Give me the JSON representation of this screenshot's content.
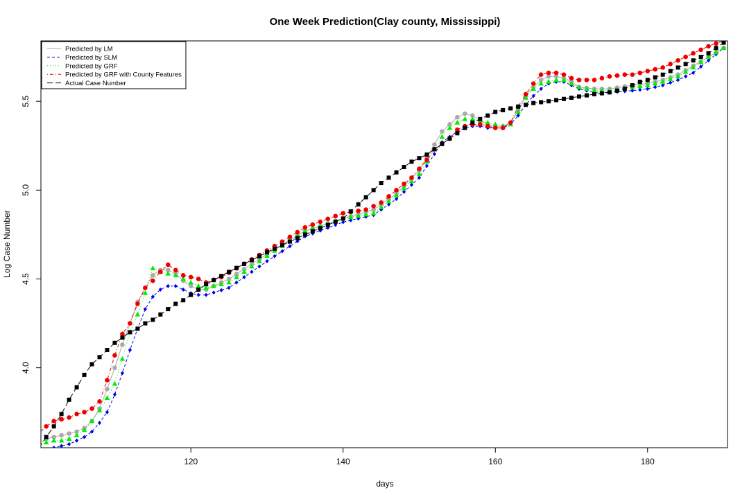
{
  "chart_data": {
    "type": "line",
    "title": "One Week Prediction(Clay county, Mississippi)",
    "xlabel": "days",
    "ylabel": "Log Case Number",
    "xlim": [
      100.3,
      190.5
    ],
    "ylim": [
      3.55,
      5.84
    ],
    "xticks": [
      120,
      140,
      160,
      180
    ],
    "yticks": [
      4.0,
      4.5,
      5.0,
      5.5
    ],
    "grid": false,
    "legend_position": "top-left",
    "x_start": 100,
    "x_end": 190,
    "series": [
      {
        "name": "Predicted by LM",
        "color": "#aaaaaa",
        "line_style": "solid",
        "marker": "circle",
        "knots": [
          [
            100,
            3.57
          ],
          [
            101,
            3.6
          ],
          [
            102,
            3.61
          ],
          [
            103,
            3.62
          ],
          [
            104,
            3.63
          ],
          [
            105,
            3.64
          ],
          [
            106,
            3.66
          ],
          [
            107,
            3.7
          ],
          [
            108,
            3.77
          ],
          [
            109,
            3.88
          ],
          [
            110,
            4.0
          ],
          [
            111,
            4.13
          ],
          [
            112,
            4.25
          ],
          [
            113,
            4.37
          ],
          [
            114,
            4.45
          ],
          [
            115,
            4.52
          ],
          [
            116,
            4.55
          ],
          [
            117,
            4.55
          ],
          [
            118,
            4.53
          ],
          [
            119,
            4.49
          ],
          [
            120,
            4.46
          ],
          [
            121,
            4.44
          ],
          [
            122,
            4.44
          ],
          [
            125,
            4.5
          ],
          [
            130,
            4.64
          ],
          [
            135,
            4.77
          ],
          [
            140,
            4.84
          ],
          [
            144,
            4.89
          ],
          [
            147,
            4.98
          ],
          [
            150,
            5.11
          ],
          [
            153,
            5.33
          ],
          [
            154,
            5.37
          ],
          [
            155,
            5.41
          ],
          [
            156,
            5.43
          ],
          [
            157,
            5.42
          ],
          [
            158,
            5.39
          ],
          [
            159,
            5.37
          ],
          [
            160,
            5.36
          ],
          [
            161,
            5.36
          ],
          [
            162,
            5.38
          ],
          [
            163,
            5.45
          ],
          [
            164,
            5.53
          ],
          [
            165,
            5.58
          ],
          [
            166,
            5.62
          ],
          [
            167,
            5.64
          ],
          [
            168,
            5.64
          ],
          [
            169,
            5.63
          ],
          [
            170,
            5.61
          ],
          [
            171,
            5.58
          ],
          [
            173,
            5.57
          ],
          [
            175,
            5.57
          ],
          [
            178,
            5.59
          ],
          [
            180,
            5.6
          ],
          [
            182,
            5.62
          ],
          [
            184,
            5.65
          ],
          [
            186,
            5.7
          ],
          [
            188,
            5.75
          ],
          [
            190,
            5.8
          ]
        ]
      },
      {
        "name": "Predicted by SLM",
        "color": "#0000ee",
        "line_style": "dashed",
        "marker": "diamond",
        "knots": [
          [
            100,
            3.53
          ],
          [
            101,
            3.54
          ],
          [
            102,
            3.55
          ],
          [
            103,
            3.56
          ],
          [
            104,
            3.57
          ],
          [
            105,
            3.59
          ],
          [
            106,
            3.61
          ],
          [
            107,
            3.64
          ],
          [
            108,
            3.69
          ],
          [
            109,
            3.75
          ],
          [
            110,
            3.85
          ],
          [
            111,
            3.97
          ],
          [
            112,
            4.1
          ],
          [
            113,
            4.22
          ],
          [
            114,
            4.33
          ],
          [
            115,
            4.4
          ],
          [
            116,
            4.44
          ],
          [
            117,
            4.46
          ],
          [
            118,
            4.46
          ],
          [
            119,
            4.44
          ],
          [
            120,
            4.42
          ],
          [
            121,
            4.41
          ],
          [
            122,
            4.41
          ],
          [
            125,
            4.45
          ],
          [
            130,
            4.6
          ],
          [
            135,
            4.74
          ],
          [
            140,
            4.82
          ],
          [
            144,
            4.86
          ],
          [
            147,
            4.95
          ],
          [
            150,
            5.07
          ],
          [
            153,
            5.27
          ],
          [
            154,
            5.3
          ],
          [
            155,
            5.33
          ],
          [
            156,
            5.35
          ],
          [
            157,
            5.36
          ],
          [
            158,
            5.36
          ],
          [
            159,
            5.35
          ],
          [
            160,
            5.35
          ],
          [
            161,
            5.35
          ],
          [
            162,
            5.37
          ],
          [
            163,
            5.42
          ],
          [
            164,
            5.48
          ],
          [
            165,
            5.53
          ],
          [
            166,
            5.57
          ],
          [
            167,
            5.6
          ],
          [
            168,
            5.61
          ],
          [
            169,
            5.61
          ],
          [
            170,
            5.59
          ],
          [
            171,
            5.57
          ],
          [
            173,
            5.55
          ],
          [
            175,
            5.55
          ],
          [
            178,
            5.56
          ],
          [
            180,
            5.57
          ],
          [
            182,
            5.59
          ],
          [
            184,
            5.62
          ],
          [
            186,
            5.66
          ],
          [
            188,
            5.73
          ],
          [
            190,
            5.8
          ]
        ]
      },
      {
        "name": "Predicted by GRF",
        "color": "#00ee00",
        "line_style": "dotted",
        "marker": "triangle",
        "knots": [
          [
            100,
            3.56
          ],
          [
            101,
            3.58
          ],
          [
            102,
            3.59
          ],
          [
            103,
            3.59
          ],
          [
            104,
            3.6
          ],
          [
            105,
            3.62
          ],
          [
            106,
            3.65
          ],
          [
            107,
            3.7
          ],
          [
            108,
            3.76
          ],
          [
            109,
            3.83
          ],
          [
            110,
            3.91
          ],
          [
            111,
            4.05
          ],
          [
            112,
            4.2
          ],
          [
            113,
            4.3
          ],
          [
            114,
            4.42
          ],
          [
            115,
            4.56
          ],
          [
            116,
            4.54
          ],
          [
            117,
            4.53
          ],
          [
            118,
            4.52
          ],
          [
            119,
            4.5
          ],
          [
            120,
            4.48
          ],
          [
            121,
            4.46
          ],
          [
            122,
            4.45
          ],
          [
            125,
            4.48
          ],
          [
            130,
            4.63
          ],
          [
            135,
            4.77
          ],
          [
            140,
            4.84
          ],
          [
            144,
            4.87
          ],
          [
            147,
            4.97
          ],
          [
            150,
            5.09
          ],
          [
            153,
            5.3
          ],
          [
            154,
            5.35
          ],
          [
            155,
            5.38
          ],
          [
            156,
            5.4
          ],
          [
            157,
            5.4
          ],
          [
            158,
            5.39
          ],
          [
            159,
            5.38
          ],
          [
            160,
            5.37
          ],
          [
            161,
            5.36
          ],
          [
            162,
            5.37
          ],
          [
            163,
            5.44
          ],
          [
            164,
            5.52
          ],
          [
            165,
            5.57
          ],
          [
            166,
            5.6
          ],
          [
            167,
            5.61
          ],
          [
            168,
            5.62
          ],
          [
            169,
            5.62
          ],
          [
            170,
            5.6
          ],
          [
            171,
            5.58
          ],
          [
            173,
            5.56
          ],
          [
            175,
            5.56
          ],
          [
            178,
            5.58
          ],
          [
            180,
            5.59
          ],
          [
            182,
            5.61
          ],
          [
            184,
            5.64
          ],
          [
            186,
            5.69
          ],
          [
            188,
            5.75
          ],
          [
            190,
            5.8
          ]
        ]
      },
      {
        "name": "Predicted by GRF with County Features",
        "color": "#ee0000",
        "line_style": "dotdash",
        "marker": "circle",
        "knots": [
          [
            100,
            3.63
          ],
          [
            101,
            3.67
          ],
          [
            102,
            3.7
          ],
          [
            103,
            3.71
          ],
          [
            104,
            3.72
          ],
          [
            105,
            3.74
          ],
          [
            106,
            3.75
          ],
          [
            107,
            3.77
          ],
          [
            108,
            3.81
          ],
          [
            109,
            3.93
          ],
          [
            110,
            4.07
          ],
          [
            111,
            4.19
          ],
          [
            112,
            4.25
          ],
          [
            113,
            4.36
          ],
          [
            114,
            4.45
          ],
          [
            115,
            4.49
          ],
          [
            116,
            4.54
          ],
          [
            117,
            4.58
          ],
          [
            118,
            4.55
          ],
          [
            119,
            4.52
          ],
          [
            120,
            4.51
          ],
          [
            121,
            4.5
          ],
          [
            122,
            4.48
          ],
          [
            124,
            4.51
          ],
          [
            126,
            4.56
          ],
          [
            128,
            4.61
          ],
          [
            130,
            4.66
          ],
          [
            132,
            4.71
          ],
          [
            135,
            4.79
          ],
          [
            140,
            4.87
          ],
          [
            143,
            4.89
          ],
          [
            145,
            4.93
          ],
          [
            147,
            5.0
          ],
          [
            149,
            5.07
          ],
          [
            151,
            5.17
          ],
          [
            152,
            5.23
          ],
          [
            153,
            5.26
          ],
          [
            154,
            5.29
          ],
          [
            155,
            5.34
          ],
          [
            156,
            5.36
          ],
          [
            157,
            5.37
          ],
          [
            158,
            5.37
          ],
          [
            159,
            5.36
          ],
          [
            160,
            5.35
          ],
          [
            161,
            5.35
          ],
          [
            162,
            5.38
          ],
          [
            163,
            5.47
          ],
          [
            164,
            5.54
          ],
          [
            165,
            5.6
          ],
          [
            166,
            5.65
          ],
          [
            167,
            5.66
          ],
          [
            168,
            5.66
          ],
          [
            169,
            5.65
          ],
          [
            170,
            5.63
          ],
          [
            171,
            5.62
          ],
          [
            173,
            5.62
          ],
          [
            175,
            5.64
          ],
          [
            177,
            5.65
          ],
          [
            178,
            5.65
          ],
          [
            180,
            5.67
          ],
          [
            182,
            5.69
          ],
          [
            184,
            5.73
          ],
          [
            186,
            5.77
          ],
          [
            188,
            5.81
          ],
          [
            190,
            5.84
          ]
        ]
      },
      {
        "name": "Actual Case Number",
        "color": "#000000",
        "line_style": "longdash",
        "marker": "square",
        "knots": [
          [
            100,
            3.55
          ],
          [
            101,
            3.61
          ],
          [
            102,
            3.67
          ],
          [
            103,
            3.74
          ],
          [
            104,
            3.82
          ],
          [
            105,
            3.89
          ],
          [
            106,
            3.96
          ],
          [
            107,
            4.02
          ],
          [
            108,
            4.06
          ],
          [
            109,
            4.1
          ],
          [
            110,
            4.14
          ],
          [
            111,
            4.17
          ],
          [
            112,
            4.2
          ],
          [
            113,
            4.22
          ],
          [
            114,
            4.25
          ],
          [
            115,
            4.27
          ],
          [
            116,
            4.3
          ],
          [
            117,
            4.33
          ],
          [
            118,
            4.36
          ],
          [
            119,
            4.38
          ],
          [
            120,
            4.41
          ],
          [
            121,
            4.44
          ],
          [
            122,
            4.47
          ],
          [
            125,
            4.54
          ],
          [
            130,
            4.65
          ],
          [
            135,
            4.75
          ],
          [
            140,
            4.84
          ],
          [
            141,
            4.88
          ],
          [
            142,
            4.92
          ],
          [
            143,
            4.96
          ],
          [
            144,
            5.0
          ],
          [
            145,
            5.04
          ],
          [
            146,
            5.07
          ],
          [
            147,
            5.1
          ],
          [
            148,
            5.13
          ],
          [
            149,
            5.16
          ],
          [
            150,
            5.18
          ],
          [
            151,
            5.2
          ],
          [
            152,
            5.23
          ],
          [
            153,
            5.26
          ],
          [
            154,
            5.29
          ],
          [
            155,
            5.32
          ],
          [
            156,
            5.35
          ],
          [
            157,
            5.38
          ],
          [
            158,
            5.4
          ],
          [
            159,
            5.42
          ],
          [
            160,
            5.44
          ],
          [
            161,
            5.45
          ],
          [
            162,
            5.46
          ],
          [
            163,
            5.47
          ],
          [
            164,
            5.48
          ],
          [
            165,
            5.49
          ],
          [
            167,
            5.5
          ],
          [
            170,
            5.52
          ],
          [
            173,
            5.54
          ],
          [
            175,
            5.55
          ],
          [
            177,
            5.57
          ],
          [
            178,
            5.59
          ],
          [
            179,
            5.61
          ],
          [
            180,
            5.62
          ],
          [
            182,
            5.65
          ],
          [
            184,
            5.69
          ],
          [
            186,
            5.73
          ],
          [
            188,
            5.77
          ],
          [
            190,
            5.83
          ]
        ]
      }
    ]
  }
}
